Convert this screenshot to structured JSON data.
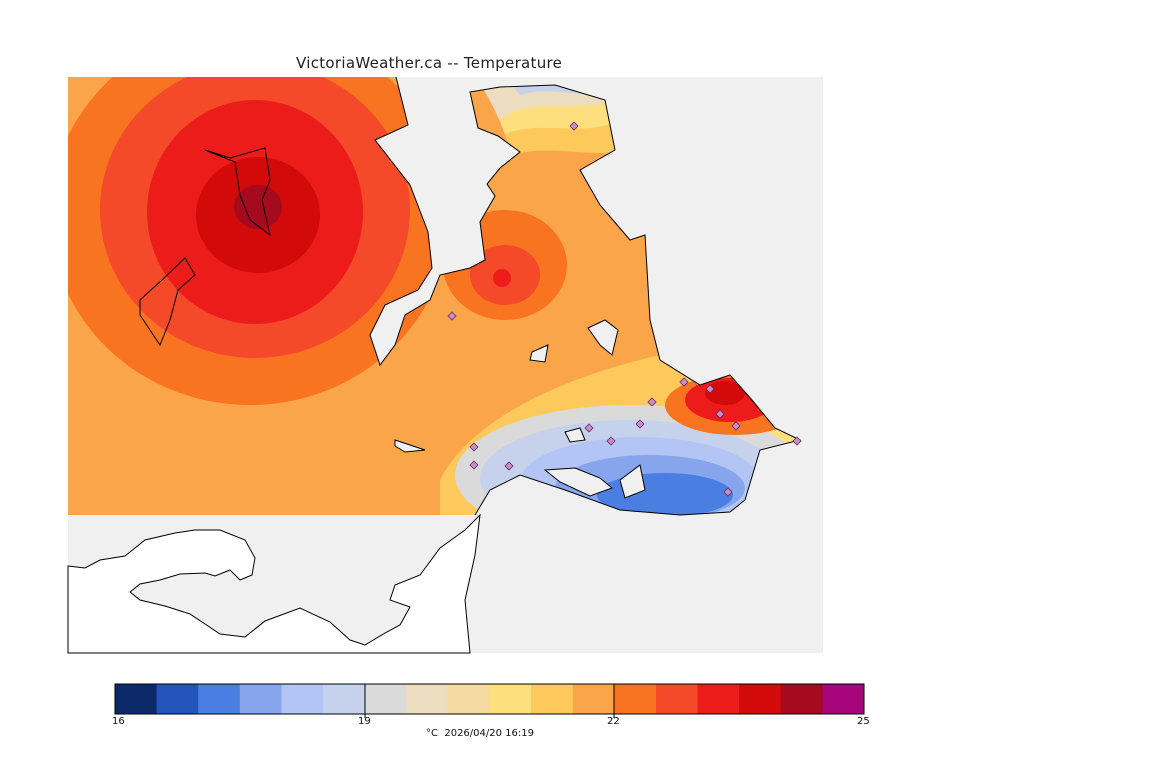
{
  "title": "VictoriaWeather.ca -- Temperature",
  "colors": {
    "water": "#f0f0f0",
    "land_unmodeled": "#ffffff",
    "coast": "#000000",
    "station_marker": "#c58fc7"
  },
  "legend": {
    "ticks": [
      "16",
      "19",
      "22",
      "25"
    ],
    "units_and_time": "°C  2026/04/20 16:19",
    "bins": [
      {
        "from": 16.0,
        "to": 16.5,
        "color": "#0c2a6a"
      },
      {
        "from": 16.5,
        "to": 17.0,
        "color": "#2355bd"
      },
      {
        "from": 17.0,
        "to": 17.5,
        "color": "#4a7ee0"
      },
      {
        "from": 17.5,
        "to": 18.0,
        "color": "#86a5ec"
      },
      {
        "from": 18.0,
        "to": 18.5,
        "color": "#b2c5f4"
      },
      {
        "from": 18.5,
        "to": 19.0,
        "color": "#c6d1ec"
      },
      {
        "from": 19.0,
        "to": 19.5,
        "color": "#dadada"
      },
      {
        "from": 19.5,
        "to": 20.0,
        "color": "#ecdcc0"
      },
      {
        "from": 20.0,
        "to": 20.5,
        "color": "#f4d9a0"
      },
      {
        "from": 20.5,
        "to": 21.0,
        "color": "#fddf7e"
      },
      {
        "from": 21.0,
        "to": 21.5,
        "color": "#fcc95a"
      },
      {
        "from": 21.5,
        "to": 22.0,
        "color": "#fba54b"
      },
      {
        "from": 22.0,
        "to": 22.5,
        "color": "#f97421"
      },
      {
        "from": 22.5,
        "to": 23.0,
        "color": "#f44a2a"
      },
      {
        "from": 23.0,
        "to": 23.5,
        "color": "#ec1c1b"
      },
      {
        "from": 23.5,
        "to": 24.0,
        "color": "#d20a0a"
      },
      {
        "from": 24.0,
        "to": 24.5,
        "color": "#a60a1e"
      },
      {
        "from": 24.5,
        "to": 25.0,
        "color": "#a7057a"
      }
    ]
  }
}
